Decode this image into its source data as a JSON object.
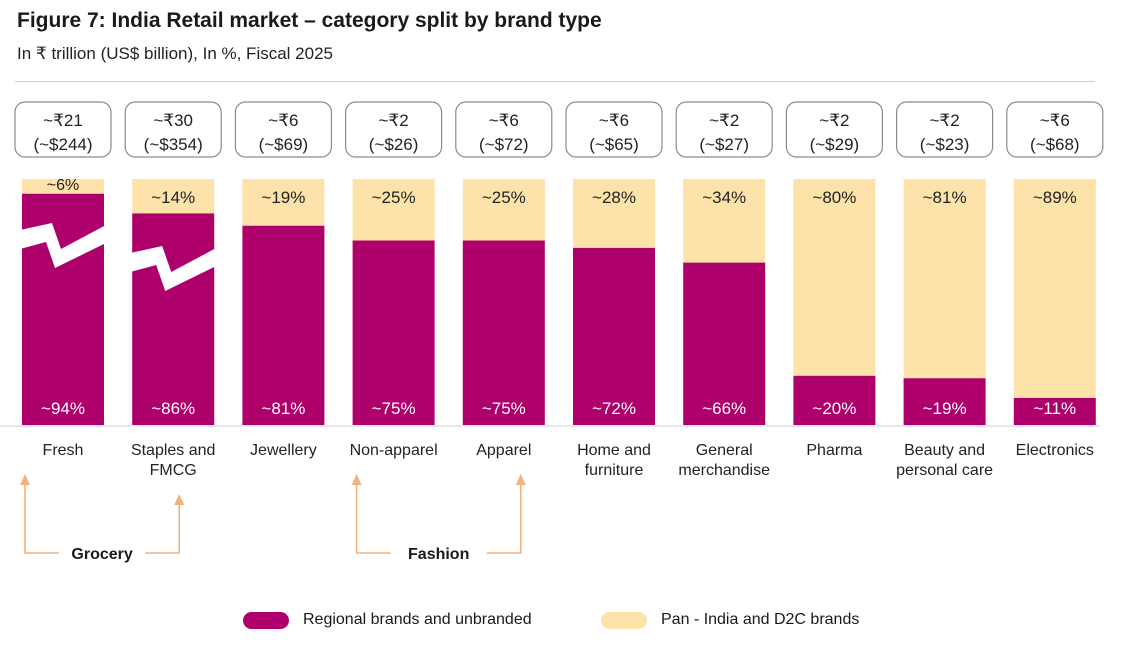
{
  "title": "Figure 7: India Retail market – category split by brand type",
  "subtitle": "In ₹ trillion (US$ billion), In %, Fiscal 2025",
  "colors": {
    "regional": "#ae006b",
    "pan_india": "#fde3aa",
    "arrow": "#f2b27e",
    "box_border": "#8c8c8c"
  },
  "chart_data": {
    "type": "bar",
    "stacked": true,
    "categories": [
      "Fresh",
      "Staples and FMCG",
      "Jewellery",
      "Non-apparel",
      "Apparel",
      "Home and furniture",
      "General merchandise",
      "Pharma",
      "Beauty and personal care",
      "Electronics"
    ],
    "category_lines": [
      [
        "Fresh"
      ],
      [
        "Staples and",
        "FMCG"
      ],
      [
        "Jewellery"
      ],
      [
        "Non-apparel"
      ],
      [
        "Apparel"
      ],
      [
        "Home and",
        "furniture"
      ],
      [
        "General",
        "merchandise"
      ],
      [
        "Pharma"
      ],
      [
        "Beauty and",
        "personal care"
      ],
      [
        "Electronics"
      ]
    ],
    "series": [
      {
        "name": "Regional brands and unbranded",
        "values": [
          94,
          86,
          81,
          75,
          75,
          72,
          66,
          20,
          19,
          11
        ],
        "labels": [
          "~94%",
          "~86%",
          "~81%",
          "~75%",
          "~75%",
          "~72%",
          "~66%",
          "~20%",
          "~19%",
          "~11%"
        ]
      },
      {
        "name": "Pan - India and D2C brands",
        "values": [
          6,
          14,
          19,
          25,
          25,
          28,
          34,
          80,
          81,
          89
        ],
        "labels": [
          "~6%",
          "~14%",
          "~19%",
          "~25%",
          "~25%",
          "~28%",
          "~34%",
          "~80%",
          "~81%",
          "~89%"
        ]
      }
    ],
    "market_size_trillion_inr": [
      "~₹21",
      "~₹30",
      "~₹6",
      "~₹2",
      "~₹6",
      "~₹6",
      "~₹2",
      "~₹2",
      "~₹2",
      "~₹6"
    ],
    "market_size_usd_billion": [
      "(~$244)",
      "(~$354)",
      "(~$69)",
      "(~$26)",
      "(~$72)",
      "(~$65)",
      "(~$27)",
      "(~$29)",
      "(~$23)",
      "(~$68)"
    ],
    "axis_broken": [
      "Fresh",
      "Staples and FMCG"
    ],
    "ylim": [
      0,
      100
    ],
    "groups": [
      {
        "label": "Grocery",
        "from": "Fresh",
        "to": "Staples and FMCG"
      },
      {
        "label": "Fashion",
        "from": "Non-apparel",
        "to": "Apparel"
      }
    ],
    "legend_position": "bottom",
    "grid": false
  }
}
